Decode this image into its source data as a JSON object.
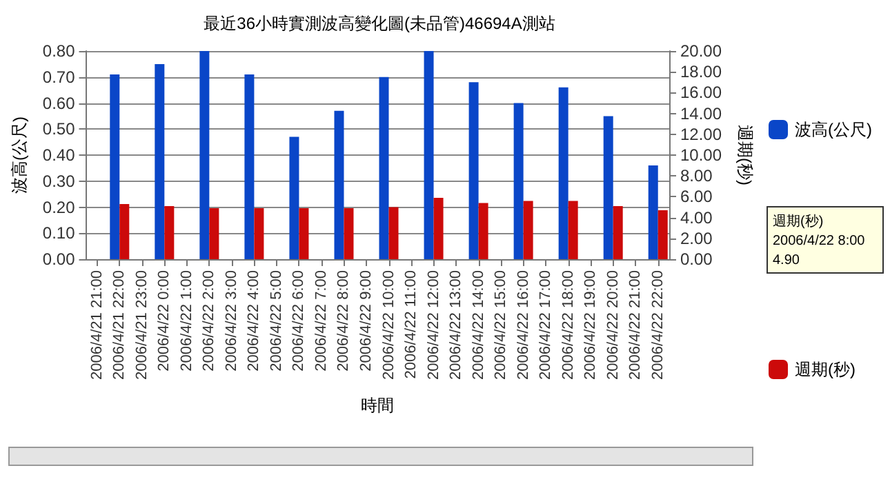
{
  "chart_data": {
    "type": "bar",
    "title": "最近36小時實測波高變化圖(未品管)46694A測站",
    "xlabel": "時間",
    "ylabel": "波高(公尺)",
    "y2label": "週期(秒)",
    "categories": [
      "2006/4/21 21:00",
      "2006/4/21 22:00",
      "2006/4/21 23:00",
      "2006/4/22 0:00",
      "2006/4/22 1:00",
      "2006/4/22 2:00",
      "2006/4/22 3:00",
      "2006/4/22 4:00",
      "2006/4/22 5:00",
      "2006/4/22 6:00",
      "2006/4/22 7:00",
      "2006/4/22 8:00",
      "2006/4/22 9:00",
      "2006/4/22 10:00",
      "2006/4/22 11:00",
      "2006/4/22 12:00",
      "2006/4/22 13:00",
      "2006/4/22 14:00",
      "2006/4/22 15:00",
      "2006/4/22 16:00",
      "2006/4/22 17:00",
      "2006/4/22 18:00",
      "2006/4/22 19:00",
      "2006/4/22 20:00",
      "2006/4/22 21:00",
      "2006/4/22 22:00"
    ],
    "series": [
      {
        "name": "波高(公尺)",
        "color": "#0a46c8",
        "values": [
          null,
          0.71,
          null,
          0.75,
          null,
          0.8,
          null,
          0.71,
          null,
          0.47,
          null,
          0.57,
          null,
          0.7,
          null,
          0.8,
          null,
          0.68,
          null,
          0.6,
          null,
          0.66,
          null,
          0.55,
          null,
          0.36
        ]
      },
      {
        "name": "週期(秒)",
        "color": "#cc0a0a",
        "axis": "y2",
        "values": [
          null,
          5.3,
          null,
          5.1,
          null,
          4.9,
          null,
          4.9,
          null,
          4.9,
          null,
          4.9,
          null,
          5.0,
          null,
          5.9,
          null,
          5.4,
          null,
          5.6,
          null,
          5.6,
          null,
          5.1,
          null,
          4.7
        ]
      }
    ],
    "ylim": [
      0,
      0.8
    ],
    "yticks": [
      {
        "value": 0,
        "label": "0.00"
      },
      {
        "value": 0.1,
        "label": "0.10"
      },
      {
        "value": 0.2,
        "label": "0.20"
      },
      {
        "value": 0.3,
        "label": "0.30"
      },
      {
        "value": 0.4,
        "label": "0.40"
      },
      {
        "value": 0.5,
        "label": "0.50"
      },
      {
        "value": 0.6,
        "label": "0.60"
      },
      {
        "value": 0.7,
        "label": "0.70"
      },
      {
        "value": 0.8,
        "label": "0.80"
      }
    ],
    "y2lim": [
      0,
      20
    ],
    "y2ticks": [
      {
        "value": 0,
        "label": "0.00"
      },
      {
        "value": 2,
        "label": "2.00"
      },
      {
        "value": 4,
        "label": "4.00"
      },
      {
        "value": 6,
        "label": "6.00"
      },
      {
        "value": 8,
        "label": "8.00"
      },
      {
        "value": 10,
        "label": "10.00"
      },
      {
        "value": 12,
        "label": "12.00"
      },
      {
        "value": 14,
        "label": "14.00"
      },
      {
        "value": 16,
        "label": "16.00"
      },
      {
        "value": 18,
        "label": "18.00"
      },
      {
        "value": 20,
        "label": "20.00"
      }
    ],
    "grid": "y",
    "legend": "right",
    "annotations": [
      "週期(秒)\n2006/4/22 8:00\n4.90"
    ]
  }
}
